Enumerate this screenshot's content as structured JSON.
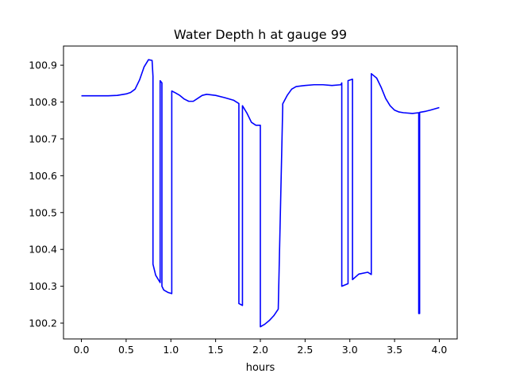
{
  "chart_data": {
    "type": "line",
    "title": "Water Depth h at gauge 99",
    "xlabel": "hours",
    "ylabel": "",
    "xlim": [
      -0.2,
      4.2
    ],
    "ylim": [
      100.157,
      100.952
    ],
    "xticks": [
      0.0,
      0.5,
      1.0,
      1.5,
      2.0,
      2.5,
      3.0,
      3.5,
      4.0
    ],
    "xtick_labels": [
      "0.0",
      "0.5",
      "1.0",
      "1.5",
      "2.0",
      "2.5",
      "3.0",
      "3.5",
      "4.0"
    ],
    "yticks": [
      100.2,
      100.3,
      100.4,
      100.5,
      100.6,
      100.7,
      100.8,
      100.9
    ],
    "ytick_labels": [
      "100.2",
      "100.3",
      "100.4",
      "100.5",
      "100.6",
      "100.7",
      "100.8",
      "100.9"
    ],
    "grid": false,
    "legend": "none",
    "color": "#0000ff",
    "series": [
      {
        "x": [
          0.0,
          0.1,
          0.2,
          0.3,
          0.4,
          0.5,
          0.55,
          0.6,
          0.65,
          0.7,
          0.75,
          0.79,
          0.8,
          0.8,
          0.83,
          0.88,
          0.88,
          0.9,
          0.9,
          0.92,
          0.97,
          1.01,
          1.01,
          1.05,
          1.1,
          1.15,
          1.2,
          1.25,
          1.3,
          1.35,
          1.4,
          1.5,
          1.6,
          1.7,
          1.76,
          1.76,
          1.8,
          1.8,
          1.85,
          1.9,
          1.95,
          2.0,
          2.0,
          2.05,
          2.1,
          2.15,
          2.2,
          2.25,
          2.25,
          2.3,
          2.35,
          2.4,
          2.5,
          2.6,
          2.7,
          2.8,
          2.9,
          2.91,
          2.91,
          2.98,
          2.98,
          3.03,
          3.03,
          3.1,
          3.2,
          3.24,
          3.24,
          3.3,
          3.35,
          3.4,
          3.45,
          3.5,
          3.55,
          3.6,
          3.7,
          3.77,
          3.77,
          3.78,
          3.78,
          3.85,
          3.9,
          4.0
        ],
        "y": [
          100.817,
          100.817,
          100.817,
          100.817,
          100.818,
          100.822,
          100.826,
          100.835,
          100.86,
          100.895,
          100.915,
          100.913,
          100.87,
          100.36,
          100.33,
          100.31,
          100.858,
          100.852,
          100.3,
          100.29,
          100.283,
          100.28,
          100.83,
          100.825,
          100.818,
          100.808,
          100.802,
          100.802,
          100.81,
          100.818,
          100.821,
          100.818,
          100.812,
          100.805,
          100.796,
          100.253,
          100.248,
          100.79,
          100.77,
          100.745,
          100.737,
          100.737,
          100.19,
          100.197,
          100.207,
          100.22,
          100.238,
          100.787,
          100.795,
          100.818,
          100.835,
          100.842,
          100.845,
          100.847,
          100.847,
          100.845,
          100.847,
          100.852,
          100.3,
          100.307,
          100.858,
          100.862,
          100.318,
          100.333,
          100.338,
          100.332,
          100.877,
          100.865,
          100.84,
          100.81,
          100.79,
          100.778,
          100.773,
          100.771,
          100.769,
          100.771,
          100.226,
          100.226,
          100.772,
          100.775,
          100.778,
          100.785
        ]
      }
    ]
  }
}
